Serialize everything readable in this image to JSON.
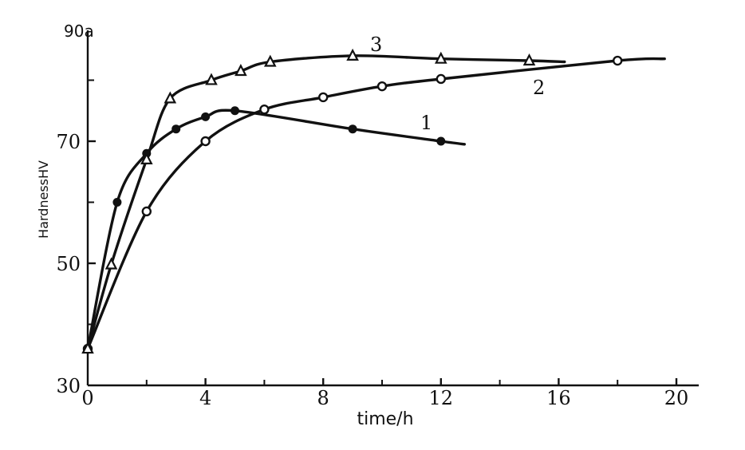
{
  "chart_data": {
    "type": "line",
    "title": "",
    "xlabel": "time/h",
    "ylabel": "HardnessHV",
    "xlim": [
      0,
      21
    ],
    "ylim": [
      30,
      90
    ],
    "x_ticks": [
      0,
      4,
      8,
      12,
      16,
      20
    ],
    "x_tick_labels": [
      "0",
      "4",
      "8",
      "12",
      "16",
      "20"
    ],
    "x_minor_ticks": [
      2,
      6,
      10,
      14,
      18
    ],
    "y_ticks": [
      30,
      50,
      70
    ],
    "y_tick_labels": [
      "30",
      "50",
      "70"
    ],
    "y_minor_ticks": [
      40,
      60,
      80
    ],
    "y_top_label": "90a",
    "grid": false,
    "series": [
      {
        "name": "1",
        "marker": "filled-circle",
        "x": [
          0,
          1,
          2,
          3,
          4,
          5,
          9,
          12
        ],
        "y": [
          36,
          60,
          68,
          72,
          74,
          75,
          72,
          70
        ],
        "line_end": [
          12.8,
          69.5
        ]
      },
      {
        "name": "2",
        "marker": "open-circle",
        "x": [
          0,
          2,
          4,
          6,
          8,
          10,
          12,
          18
        ],
        "y": [
          36,
          58.5,
          70,
          75.2,
          77.2,
          79,
          80.2,
          83.2
        ],
        "line_end": [
          19.6,
          83.5
        ]
      },
      {
        "name": "3",
        "marker": "open-triangle",
        "x": [
          0,
          0.8,
          2,
          2.8,
          4.2,
          5.2,
          6.2,
          9,
          12,
          15
        ],
        "y": [
          36,
          49.8,
          67,
          77,
          80,
          81.5,
          83,
          84,
          83.5,
          83.2
        ],
        "line_end": [
          16.2,
          83
        ]
      }
    ]
  }
}
